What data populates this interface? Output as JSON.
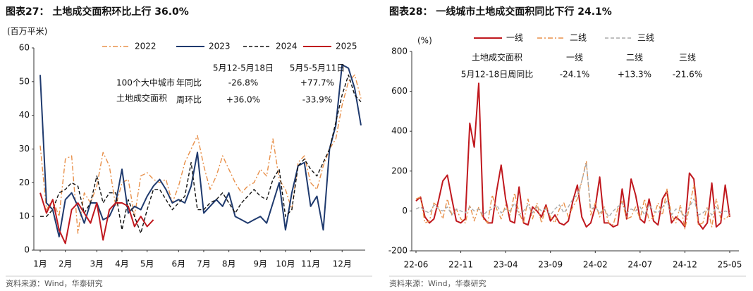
{
  "chart_data": [
    {
      "type": "line",
      "title": "图表27： 土地成交面积环比上行 36.0%",
      "y_label": "(百万平米)",
      "source": "资料来源：Wind，华泰研究",
      "categories": [
        "1月",
        null,
        null,
        null,
        "2月",
        null,
        null,
        null,
        null,
        "3月",
        null,
        null,
        null,
        "4月",
        null,
        null,
        null,
        "5月",
        null,
        null,
        null,
        null,
        "6月",
        null,
        null,
        null,
        "7月",
        null,
        null,
        null,
        "8月",
        null,
        null,
        null,
        null,
        "9月",
        null,
        null,
        null,
        "10月",
        null,
        null,
        null,
        "11月",
        null,
        null,
        null,
        null,
        "12月",
        null,
        null,
        null
      ],
      "ylim": [
        0,
        60
      ],
      "yticks": [
        0,
        10,
        20,
        30,
        40,
        50,
        60
      ],
      "grid": false,
      "legend": "top",
      "series": [
        {
          "name": "2022",
          "color": "#e8904a",
          "style": "dash-dot",
          "values": [
            31,
            12,
            15,
            10,
            27,
            28,
            5,
            17,
            14,
            19,
            29,
            25,
            13,
            20,
            21,
            10,
            22,
            23,
            21,
            20,
            21,
            14,
            19,
            26,
            30,
            34,
            25,
            18,
            22,
            28,
            24,
            20,
            17,
            19,
            20,
            24,
            22,
            33,
            21,
            18,
            12,
            26,
            28,
            20,
            18,
            25,
            30,
            33,
            43,
            50,
            52,
            45
          ]
        },
        {
          "name": "2023",
          "color": "#1f3a6e",
          "style": "solid",
          "values": [
            52,
            14,
            12,
            4,
            15,
            17,
            13,
            8,
            14,
            14,
            9,
            10,
            14,
            24,
            11,
            13,
            12,
            16,
            19,
            21,
            18,
            14,
            15,
            14,
            19,
            29,
            11,
            13,
            15,
            13,
            17,
            10,
            9,
            8,
            9,
            10,
            8,
            14,
            20,
            6,
            17,
            25,
            26,
            13,
            16,
            6,
            30,
            37,
            55,
            54,
            48,
            37
          ]
        },
        {
          "name": "2024",
          "color": "#111111",
          "style": "dashed",
          "values": [
            10,
            10,
            12,
            17,
            18,
            20,
            19,
            11,
            14,
            22,
            14,
            17,
            17,
            6,
            15,
            10,
            5,
            12,
            18,
            18,
            15,
            12,
            14,
            16,
            26,
            12,
            12,
            14,
            15,
            17,
            14,
            11,
            14,
            16,
            18,
            16,
            15,
            21,
            24,
            10,
            12,
            25,
            27,
            24,
            22,
            26,
            30,
            38,
            46,
            52,
            46,
            44
          ]
        },
        {
          "name": "2025",
          "color": "#c0181e",
          "style": "solid",
          "values": [
            17,
            11,
            15,
            6,
            2,
            12,
            14,
            11,
            8,
            14,
            3,
            12,
            14,
            14,
            13,
            7,
            10,
            7,
            9,
            null,
            null,
            null,
            null,
            null,
            null,
            null,
            null,
            null,
            null,
            null,
            null,
            null,
            null,
            null,
            null,
            null,
            null,
            null,
            null,
            null,
            null,
            null,
            null,
            null,
            null,
            null,
            null,
            null,
            null,
            null,
            null,
            null
          ]
        }
      ],
      "annotation": {
        "caption": [
          "100个大中城市",
          "土地成交面积"
        ],
        "columns": [
          "5月12-5月18日",
          "5月5-5月11日"
        ],
        "rows": [
          {
            "label": "年同比",
            "values": [
              "-26.8%",
              "+77.7%"
            ]
          },
          {
            "label": "周环比",
            "values": [
              "+36.0%",
              "-33.9%"
            ]
          }
        ]
      }
    },
    {
      "type": "line",
      "title": "图表28： 一线城市土地成交面积同比下行 24.1%",
      "y_label": "(%)",
      "source": "资料来源：Wind，华泰研究",
      "categories": [
        "22-06",
        null,
        null,
        null,
        null,
        null,
        null,
        null,
        null,
        null,
        "22-11",
        null,
        null,
        null,
        null,
        null,
        null,
        null,
        null,
        null,
        "23-04",
        null,
        null,
        null,
        null,
        null,
        null,
        null,
        null,
        null,
        "23-09",
        null,
        null,
        null,
        null,
        null,
        null,
        null,
        null,
        null,
        "24-02",
        null,
        null,
        null,
        null,
        null,
        null,
        null,
        null,
        null,
        "24-07",
        null,
        null,
        null,
        null,
        null,
        null,
        null,
        null,
        null,
        "24-12",
        null,
        null,
        null,
        null,
        null,
        null,
        null,
        null,
        null,
        "25-05"
      ],
      "ylim": [
        -200,
        800
      ],
      "yticks": [
        -200,
        0,
        200,
        400,
        600,
        800
      ],
      "grid": false,
      "legend": "top",
      "series": [
        {
          "name": "一线",
          "color": "#c0181e",
          "style": "solid",
          "values": [
            50,
            70,
            -30,
            -60,
            -40,
            50,
            150,
            180,
            60,
            -50,
            -60,
            -40,
            440,
            320,
            640,
            -30,
            -60,
            -60,
            100,
            230,
            60,
            -50,
            -60,
            120,
            -60,
            -70,
            20,
            0,
            -30,
            30,
            -50,
            -20,
            -60,
            -70,
            -50,
            50,
            130,
            -30,
            -80,
            -60,
            20,
            170,
            -60,
            -60,
            -80,
            -70,
            110,
            -40,
            160,
            80,
            -40,
            -60,
            60,
            -50,
            -70,
            60,
            100,
            -60,
            -30,
            -50,
            -80,
            190,
            160,
            -60,
            -90,
            -60,
            140,
            -80,
            -60,
            130,
            -30
          ]
        },
        {
          "name": "二线",
          "color": "#e8904a",
          "style": "dash-dot",
          "values": [
            60,
            70,
            -60,
            -50,
            40,
            20,
            -40,
            60,
            -20,
            10,
            -40,
            -60,
            30,
            -50,
            20,
            -40,
            -60,
            80,
            10,
            -40,
            30,
            -20,
            90,
            -10,
            -60,
            60,
            -40,
            40,
            -60,
            20,
            -30,
            -60,
            10,
            40,
            -30,
            20,
            60,
            150,
            250,
            -20,
            40,
            -30,
            20,
            -60,
            -70,
            10,
            50,
            -40,
            -30,
            20,
            -40,
            60,
            -50,
            -30,
            40,
            -20,
            110,
            -20,
            -60,
            30,
            -90,
            20,
            130,
            -70,
            -60,
            20,
            -80,
            60,
            -40,
            -40,
            -20
          ]
        },
        {
          "name": "三线",
          "color": "#aaaaaa",
          "style": "dashed",
          "values": [
            10,
            20,
            0,
            -10,
            30,
            10,
            0,
            20,
            -20,
            10,
            0,
            -10,
            20,
            0,
            10,
            -20,
            0,
            10,
            30,
            -10,
            10,
            0,
            40,
            -20,
            0,
            30,
            -10,
            20,
            0,
            10,
            -20,
            10,
            30,
            -10,
            20,
            60,
            80,
            150,
            240,
            10,
            20,
            -10,
            10,
            -30,
            0,
            20,
            40,
            -10,
            10,
            0,
            20,
            -20,
            30,
            0,
            -10,
            20,
            50,
            -20,
            10,
            0,
            -30,
            20,
            60,
            -20,
            -10,
            10,
            -20,
            20,
            -10,
            0,
            -10
          ]
        }
      ],
      "annotation": {
        "caption": [
          "土地成交面积",
          "5月12-18日周同比"
        ],
        "columns": [
          "一线",
          "二线",
          "三线"
        ],
        "rows": [
          {
            "values": [
              "-24.1%",
              "+13.3%",
              "-21.6%"
            ]
          }
        ]
      }
    }
  ]
}
